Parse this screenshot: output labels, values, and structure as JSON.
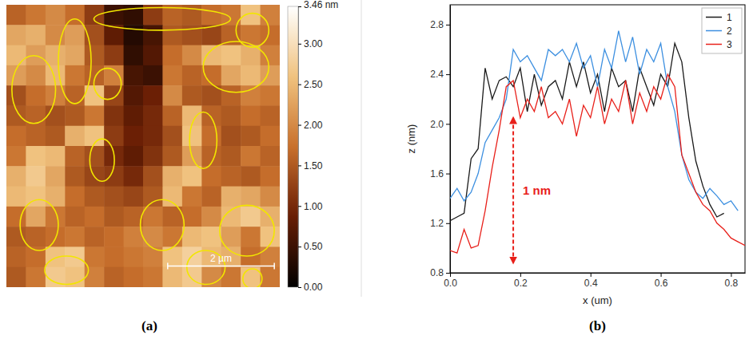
{
  "chart_data": [
    {
      "type": "heatmap",
      "title": "(a)",
      "tick_labels": false,
      "cells": [
        [
          1.6,
          1.8,
          2.0,
          1.7,
          1.2,
          0.5,
          0.4,
          1.2,
          1.6,
          1.5,
          1.7,
          1.8,
          2.6,
          1.9
        ],
        [
          2.3,
          2.4,
          2.0,
          2.2,
          1.4,
          0.8,
          0.3,
          0.6,
          1.5,
          1.4,
          1.3,
          1.6,
          1.8,
          1.7
        ],
        [
          2.5,
          2.2,
          2.4,
          2.3,
          1.5,
          1.2,
          0.4,
          0.7,
          1.7,
          2.0,
          2.5,
          2.6,
          2.4,
          1.9
        ],
        [
          2.2,
          2.0,
          2.5,
          1.8,
          1.6,
          1.9,
          0.6,
          0.5,
          1.8,
          1.6,
          1.7,
          2.3,
          2.5,
          2.2
        ],
        [
          1.4,
          1.7,
          1.9,
          1.6,
          2.6,
          1.3,
          0.7,
          0.9,
          2.0,
          1.5,
          1.4,
          1.6,
          1.9,
          1.8
        ],
        [
          1.5,
          1.6,
          1.4,
          1.5,
          1.8,
          1.1,
          0.8,
          1.0,
          1.6,
          2.5,
          1.6,
          1.5,
          1.7,
          1.6
        ],
        [
          1.7,
          1.6,
          1.5,
          2.4,
          2.6,
          1.2,
          0.9,
          1.0,
          1.4,
          2.6,
          1.7,
          1.4,
          1.5,
          1.7
        ],
        [
          1.8,
          2.6,
          2.5,
          1.6,
          1.4,
          1.0,
          0.8,
          1.1,
          1.5,
          2.2,
          1.6,
          1.5,
          1.8,
          1.6
        ],
        [
          2.4,
          2.7,
          2.3,
          1.5,
          1.3,
          1.2,
          1.0,
          1.4,
          2.4,
          2.6,
          1.7,
          1.6,
          1.5,
          1.7
        ],
        [
          2.5,
          2.6,
          2.4,
          1.7,
          1.5,
          1.4,
          1.3,
          1.5,
          2.5,
          1.8,
          1.6,
          2.4,
          2.3,
          2.0
        ],
        [
          1.7,
          2.3,
          1.8,
          1.6,
          1.7,
          1.5,
          1.6,
          1.8,
          1.6,
          1.7,
          2.0,
          2.5,
          2.7,
          2.4
        ],
        [
          1.5,
          1.6,
          1.7,
          1.8,
          1.6,
          1.7,
          1.9,
          2.0,
          1.8,
          2.5,
          2.6,
          2.2,
          1.8,
          2.6
        ],
        [
          1.6,
          1.7,
          2.6,
          2.7,
          1.8,
          1.7,
          1.8,
          1.9,
          2.6,
          2.8,
          2.5,
          2.4,
          1.7,
          1.9
        ],
        [
          1.5,
          1.8,
          2.7,
          2.6,
          1.9,
          1.6,
          1.7,
          1.8,
          2.5,
          2.7,
          2.0,
          1.8,
          2.6,
          1.8
        ]
      ],
      "colorbar": {
        "range": [
          0,
          3.46
        ],
        "ticks": [
          {
            "value": 0,
            "label": "0.00"
          },
          {
            "value": 0.5,
            "label": "0.50"
          },
          {
            "value": 1,
            "label": "1.00"
          },
          {
            "value": 1.5,
            "label": "1.50"
          },
          {
            "value": 2,
            "label": "2.00"
          },
          {
            "value": 2.5,
            "label": "2.50"
          },
          {
            "value": 3,
            "label": "3.00"
          },
          {
            "value": 3.46,
            "label": "3.46 nm"
          }
        ]
      },
      "annotations": [
        {
          "text": "2 µm"
        }
      ]
    },
    {
      "type": "line",
      "title": "(b)",
      "x_label": "x (um)",
      "y_label": "z (nm)",
      "legend": "upper right",
      "x": [
        0,
        0.02,
        0.04,
        0.06,
        0.08,
        0.1,
        0.12,
        0.14,
        0.16,
        0.18,
        0.2,
        0.22,
        0.24,
        0.26,
        0.28,
        0.3,
        0.32,
        0.34,
        0.36,
        0.38,
        0.4,
        0.42,
        0.44,
        0.46,
        0.48,
        0.5,
        0.52,
        0.54,
        0.56,
        0.58,
        0.6,
        0.62,
        0.64,
        0.66,
        0.68,
        0.7,
        0.72,
        0.74,
        0.76,
        0.78,
        0.8,
        0.82,
        0.84
      ],
      "series": [
        {
          "name": "1",
          "color": "#1a1a1a",
          "values": [
            1.22,
            1.25,
            1.28,
            1.72,
            1.8,
            2.45,
            2.2,
            2.35,
            2.38,
            2.3,
            2.45,
            2.1,
            2.4,
            2.15,
            2.3,
            2.35,
            2.2,
            2.5,
            2.3,
            2.5,
            2.25,
            2.4,
            2.1,
            2.45,
            2.3,
            2.35,
            2.1,
            2.45,
            2.3,
            2.15,
            2.4,
            2.3,
            2.65,
            2.5,
            2.05,
            1.7,
            1.5,
            1.35,
            1.25,
            1.28,
            null,
            null,
            null
          ]
        },
        {
          "name": "2",
          "color": "#3c8fe0",
          "values": [
            1.4,
            1.48,
            1.38,
            1.45,
            1.6,
            1.85,
            1.95,
            2.05,
            2.2,
            2.6,
            2.5,
            2.55,
            2.45,
            2.35,
            2.6,
            2.55,
            2.6,
            2.5,
            2.65,
            2.45,
            2.55,
            2.3,
            2.6,
            2.45,
            2.75,
            2.5,
            2.7,
            2.4,
            2.6,
            2.5,
            2.65,
            2.3,
            2.1,
            1.75,
            1.55,
            1.45,
            1.4,
            1.48,
            1.42,
            1.35,
            1.38,
            1.3,
            null
          ]
        },
        {
          "name": "3",
          "color": "#e8201a",
          "values": [
            0.98,
            0.96,
            1.15,
            1.0,
            1.02,
            1.3,
            1.65,
            1.95,
            2.3,
            2.35,
            2.05,
            2.2,
            2.1,
            2.3,
            2.05,
            2.1,
            2.0,
            2.2,
            1.9,
            2.15,
            2.05,
            2.3,
            2.0,
            2.2,
            2.1,
            2.35,
            2.0,
            2.25,
            2.1,
            2.3,
            2.2,
            2.4,
            2.3,
            1.75,
            1.6,
            1.45,
            1.35,
            1.3,
            1.2,
            1.15,
            1.08,
            1.05,
            1.02
          ]
        }
      ],
      "xlim": [
        0,
        0.84
      ],
      "ylim": [
        0.8,
        2.96
      ],
      "xticks": [
        {
          "value": 0,
          "label": "0.0"
        },
        0.2,
        0.4,
        0.6,
        0.8
      ],
      "yticks": [
        0.8,
        1.2,
        1.6,
        {
          "value": 2,
          "label": "2.0"
        },
        2.4,
        2.8
      ],
      "annotations": [
        {
          "text": "1 nm",
          "x": 0.18,
          "y": [
            0.88,
            2.05
          ],
          "color": "#e8201a"
        }
      ]
    }
  ]
}
